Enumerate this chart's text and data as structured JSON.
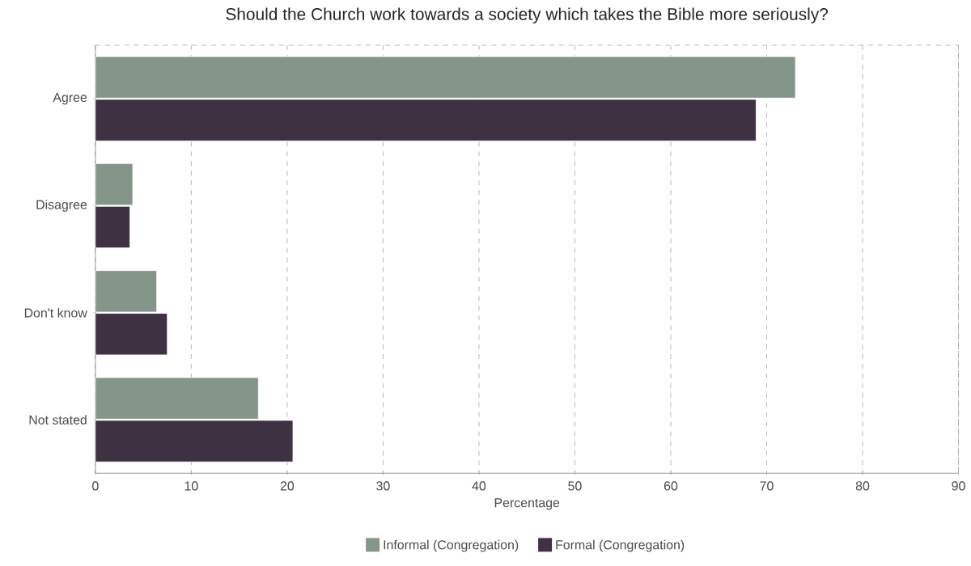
{
  "chart_data": {
    "type": "bar",
    "orientation": "horizontal",
    "title": "Should the Church work towards a society which takes the Bible more seriously?",
    "xlabel": "Percentage",
    "categories": [
      "Agree",
      "Disagree",
      "Don't know",
      "Not stated"
    ],
    "series": [
      {
        "name": "Informal (Congregation)",
        "color": "#84968a",
        "values": [
          73.0,
          3.9,
          6.4,
          17.0
        ]
      },
      {
        "name": "Formal (Congregation)",
        "color": "#3e3142",
        "values": [
          68.9,
          3.6,
          7.5,
          20.6
        ]
      }
    ],
    "xlim": [
      0,
      90
    ],
    "xticks": [
      0,
      10,
      20,
      30,
      40,
      50,
      60,
      70,
      80,
      90
    ],
    "grid": "x",
    "legend": "bottom"
  }
}
